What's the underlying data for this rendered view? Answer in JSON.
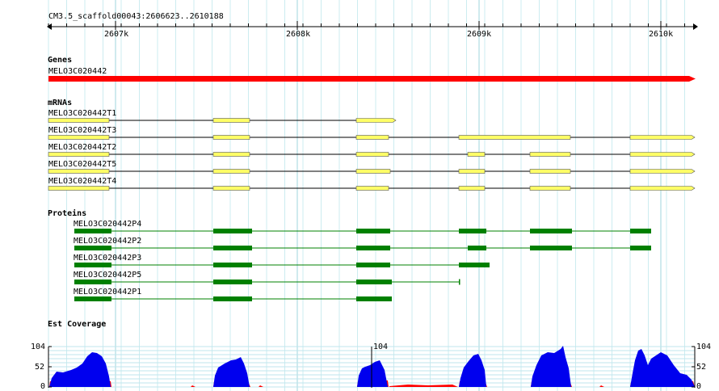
{
  "ruler": {
    "landmark": "CM3.5_scaffold00043:2606623..2610188",
    "ticks": [
      "2607k",
      "2608k",
      "2609k",
      "2610k"
    ]
  },
  "tracks": {
    "genes": {
      "title": "Genes",
      "items": [
        {
          "label": "MELO3C020442",
          "color": "#ff0000"
        }
      ]
    },
    "mrnas": {
      "title": "mRNAs",
      "items": [
        {
          "label": "MELO3C020442T1"
        },
        {
          "label": "MELO3C020442T3"
        },
        {
          "label": "MELO3C020442T2"
        },
        {
          "label": "MELO3C020442T5"
        },
        {
          "label": "MELO3C020442T4"
        }
      ]
    },
    "proteins": {
      "title": "Proteins",
      "items": [
        {
          "label": "MELO3C020442P4"
        },
        {
          "label": "MELO3C020442P2"
        },
        {
          "label": "MELO3C020442P3"
        },
        {
          "label": "MELO3C020442P5"
        },
        {
          "label": "MELO3C020442P1"
        }
      ]
    },
    "est": {
      "title": "Est Coverage",
      "ticks": [
        "104",
        "52",
        "0"
      ],
      "middle_max": "104"
    }
  },
  "colors": {
    "gene": "#ff0000",
    "exon": "#ffff66",
    "protein": "#008000",
    "coverage": "#0000ee",
    "coverage_low": "#ff0000",
    "grid": "#ccecf0"
  }
}
